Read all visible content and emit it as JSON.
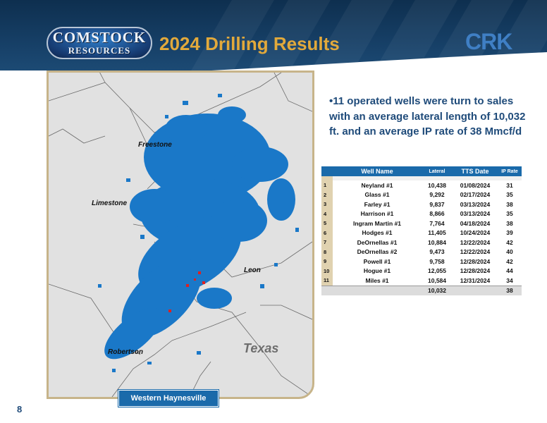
{
  "header": {
    "logo_line1": "COMSTOCK",
    "logo_line2": "RESOURCES",
    "title": "2024 Drilling Results",
    "ticker": "CRK"
  },
  "map": {
    "counties": [
      "Freestone",
      "Limestone",
      "Leon",
      "Robertson"
    ],
    "state": "Texas",
    "caption": "Western Haynesville",
    "acreage_color": "#1a78c8",
    "well_color": "#e02020"
  },
  "bullet": "•11 operated wells were turn to sales with an average lateral length of 10,032 ft. and an average IP rate of 38 Mmcf/d",
  "table": {
    "headers": [
      "Well Name",
      "Lateral",
      "TTS Date",
      "IP Rate"
    ],
    "rows": [
      {
        "n": "1",
        "name": "Neyland #1",
        "lateral": "10,438",
        "date": "01/08/2024",
        "ip": "31"
      },
      {
        "n": "2",
        "name": "Glass #1",
        "lateral": "9,292",
        "date": "02/17/2024",
        "ip": "35"
      },
      {
        "n": "3",
        "name": "Farley #1",
        "lateral": "9,837",
        "date": "03/13/2024",
        "ip": "38"
      },
      {
        "n": "4",
        "name": "Harrison #1",
        "lateral": "8,866",
        "date": "03/13/2024",
        "ip": "35"
      },
      {
        "n": "5",
        "name": "Ingram Martin #1",
        "lateral": "7,764",
        "date": "04/18/2024",
        "ip": "38"
      },
      {
        "n": "6",
        "name": "Hodges #1",
        "lateral": "11,405",
        "date": "10/24/2024",
        "ip": "39"
      },
      {
        "n": "7",
        "name": "DeOrnellas #1",
        "lateral": "10,884",
        "date": "12/22/2024",
        "ip": "42"
      },
      {
        "n": "8",
        "name": "DeOrnellas #2",
        "lateral": "9,473",
        "date": "12/22/2024",
        "ip": "40"
      },
      {
        "n": "9",
        "name": "Powell #1",
        "lateral": "9,758",
        "date": "12/28/2024",
        "ip": "42"
      },
      {
        "n": "10",
        "name": "Hogue #1",
        "lateral": "12,055",
        "date": "12/28/2024",
        "ip": "44"
      },
      {
        "n": "11",
        "name": "Miles #1",
        "lateral": "10,584",
        "date": "12/31/2024",
        "ip": "34"
      }
    ],
    "total": {
      "lateral": "10,032",
      "ip": "38"
    }
  },
  "page_number": "8"
}
